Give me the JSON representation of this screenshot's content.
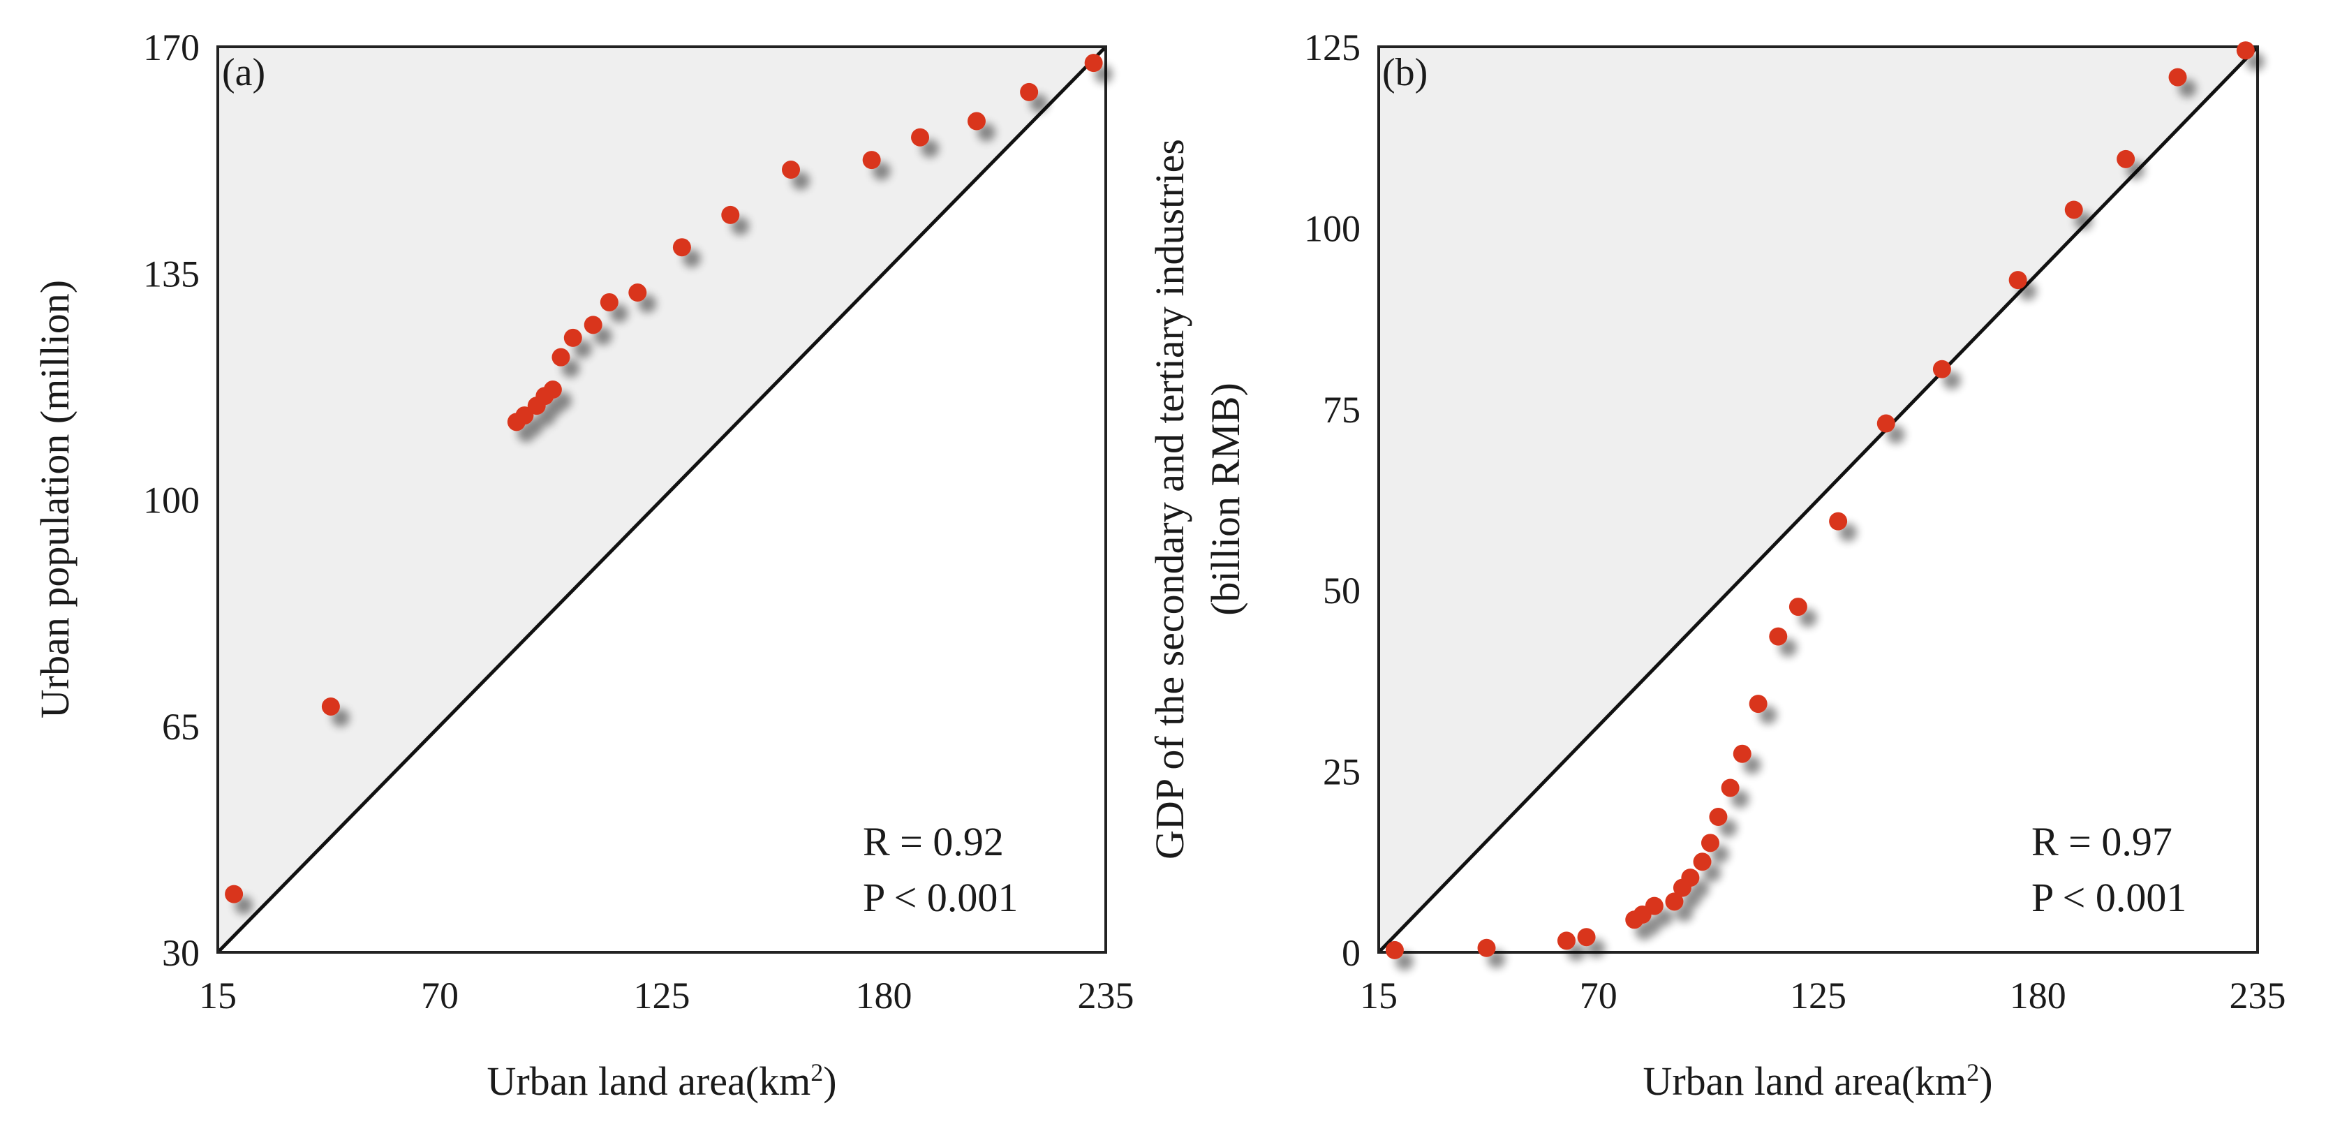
{
  "colors": {
    "point": "#d9361c",
    "shade": "#efefef",
    "line": "#111111",
    "frame": "#222222",
    "background": "#ffffff"
  },
  "chart_data": [
    {
      "type": "scatter",
      "panel_label": "(a)",
      "xlabel_main": "Urban land area(km",
      "xlabel_sup": "2",
      "xlabel_end": ")",
      "ylabel": "Urban population (million)",
      "xlim": [
        15,
        235
      ],
      "ylim": [
        30,
        170
      ],
      "xticks": [
        15,
        70,
        125,
        180,
        235
      ],
      "yticks": [
        30,
        65,
        100,
        135,
        170
      ],
      "reference_line": "diagonal from lower-left to upper-right corner; area above shaded",
      "stats": [
        "R = 0.92",
        "P < 0.001"
      ],
      "points": [
        [
          19,
          39
        ],
        [
          43,
          68
        ],
        [
          89,
          112
        ],
        [
          91,
          113
        ],
        [
          94,
          114.5
        ],
        [
          96,
          116
        ],
        [
          98,
          117
        ],
        [
          100,
          122
        ],
        [
          103,
          125
        ],
        [
          108,
          127
        ],
        [
          112,
          130.5
        ],
        [
          119,
          132
        ],
        [
          130,
          139
        ],
        [
          142,
          144
        ],
        [
          157,
          151
        ],
        [
          177,
          152.5
        ],
        [
          189,
          156
        ],
        [
          203,
          158.5
        ],
        [
          216,
          163
        ],
        [
          232,
          167.5
        ]
      ]
    },
    {
      "type": "scatter",
      "panel_label": "(b)",
      "xlabel_main": "Urban land area(km",
      "xlabel_sup": "2",
      "xlabel_end": ")",
      "ylabel": "GDP of the secondary and tertiary industries",
      "ylabel2": "(billion RMB)",
      "xlim": [
        15,
        235
      ],
      "ylim": [
        0,
        125
      ],
      "xticks": [
        15,
        70,
        125,
        180,
        235
      ],
      "yticks": [
        0,
        25,
        50,
        75,
        100,
        125
      ],
      "reference_line": "diagonal from lower-left to upper-right corner; area above shaded",
      "stats": [
        "R = 0.97",
        "P < 0.001"
      ],
      "points": [
        [
          19,
          0.3
        ],
        [
          42,
          0.6
        ],
        [
          62,
          1.6
        ],
        [
          67,
          2.1
        ],
        [
          79,
          4.5
        ],
        [
          81,
          5.2
        ],
        [
          84,
          6.4
        ],
        [
          89,
          7
        ],
        [
          91,
          8.9
        ],
        [
          93,
          10.3
        ],
        [
          96,
          12.5
        ],
        [
          98,
          15.1
        ],
        [
          100,
          18.7
        ],
        [
          103,
          22.7
        ],
        [
          106,
          27.4
        ],
        [
          110,
          34.3
        ],
        [
          115,
          43.6
        ],
        [
          120,
          47.7
        ],
        [
          130,
          59.5
        ],
        [
          142,
          73
        ],
        [
          156,
          80.5
        ],
        [
          175,
          92.8
        ],
        [
          189,
          102.5
        ],
        [
          202,
          109.5
        ],
        [
          215,
          120.8
        ],
        [
          232,
          124.5
        ]
      ]
    }
  ]
}
